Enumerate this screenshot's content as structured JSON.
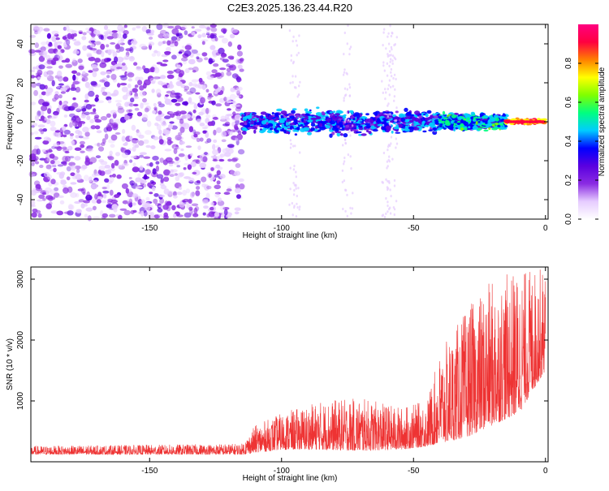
{
  "title": "C2E3.2025.136.23.44.R20",
  "chart_data": [
    {
      "type": "heatmap",
      "xlabel": "Height of straight line (km)",
      "ylabel": "Frequency (Hz)",
      "xlim": [
        -195,
        1
      ],
      "ylim": [
        -50,
        50
      ],
      "x_ticks": [
        -150,
        -100,
        -50,
        0
      ],
      "y_ticks": [
        -40,
        -20,
        0,
        20,
        40
      ],
      "colorbar": {
        "label": "Normalized spectral amplitude",
        "range": [
          0,
          1
        ],
        "ticks": [
          "0.0",
          "0.2",
          "0.4",
          "0.6",
          "0.8"
        ],
        "tick_values": [
          0.0,
          0.2,
          0.4,
          0.6,
          0.8
        ],
        "colors": [
          "#ffffff",
          "#e6ccff",
          "#8a2be2",
          "#5a00e0",
          "#0000ff",
          "#00ccff",
          "#00ff80",
          "#7fff00",
          "#ffff00",
          "#ff8000",
          "#ff0040",
          "#ff0080"
        ]
      },
      "regions": [
        {
          "x_range": [
            -195,
            -115
          ],
          "freq_spread": [
            -50,
            50
          ],
          "amplitude": [
            0.05,
            0.25
          ]
        },
        {
          "x_range": [
            -115,
            -40
          ],
          "freq_spread": [
            -8,
            8
          ],
          "amplitude": [
            0.2,
            0.5
          ]
        },
        {
          "x_range": [
            -40,
            -15
          ],
          "freq_spread": [
            -5,
            5
          ],
          "amplitude": [
            0.3,
            0.6
          ]
        },
        {
          "x_range": [
            -15,
            0
          ],
          "freq_spread": [
            -1.5,
            1.5
          ],
          "amplitude": [
            0.7,
            0.95
          ]
        }
      ]
    },
    {
      "type": "line",
      "xlabel": "Height of straight line (km)",
      "ylabel": "SNR (10 * v/v)",
      "xlim": [
        -195,
        1
      ],
      "ylim": [
        0,
        3200
      ],
      "x_ticks": [
        -150,
        -100,
        -50,
        0
      ],
      "y_ticks": [
        1000,
        2000,
        3000
      ],
      "color": "#ee3333",
      "envelope": {
        "x": [
          -195,
          -150,
          -115,
          -110,
          -100,
          -85,
          -70,
          -55,
          -45,
          -40,
          -30,
          -20,
          -10,
          0
        ],
        "low": [
          120,
          120,
          120,
          150,
          200,
          200,
          180,
          200,
          250,
          300,
          400,
          600,
          800,
          1500
        ],
        "high": [
          260,
          280,
          300,
          600,
          800,
          1000,
          1050,
          900,
          1000,
          1800,
          2500,
          3000,
          3150,
          3200
        ]
      }
    }
  ]
}
